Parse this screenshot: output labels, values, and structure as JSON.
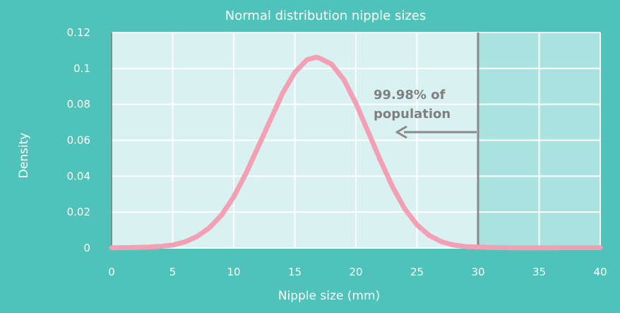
{
  "colors": {
    "background": "#4fc2b9",
    "plot_fill": "#d9f1f0",
    "shaded_fill": "#a9e2de",
    "grid": "#ffffff",
    "curve": "#f4a0b4",
    "marker_line": "#8a8a8a",
    "annotation_text": "#7f7f7f",
    "label_text": "#ffffff"
  },
  "chart_data": {
    "type": "line",
    "title": "Normal distribution nipple sizes",
    "xlabel": "Nipple size (mm)",
    "ylabel": "Density",
    "xlim": [
      0,
      40
    ],
    "ylim": [
      0,
      0.12
    ],
    "x_ticks": [
      0,
      5,
      10,
      15,
      20,
      25,
      30,
      35,
      40
    ],
    "y_ticks": [
      0,
      0.02,
      0.04,
      0.06,
      0.08,
      0.1,
      0.12
    ],
    "grid": true,
    "series": [
      {
        "x": [
          0,
          1,
          2,
          3,
          4,
          5,
          6,
          7,
          8,
          9,
          10,
          11,
          12,
          13,
          14,
          15,
          16,
          16.7,
          17,
          18,
          19,
          20,
          21,
          22,
          23,
          24,
          25,
          26,
          27,
          28,
          29,
          30,
          31,
          32,
          33,
          34,
          35,
          36,
          37,
          38,
          39,
          40
        ],
        "y": [
          0.0001,
          0.0002,
          0.0003,
          0.0005,
          0.0009,
          0.0016,
          0.0034,
          0.0064,
          0.0112,
          0.0183,
          0.0285,
          0.0415,
          0.0563,
          0.0713,
          0.0862,
          0.0978,
          0.1048,
          0.1062,
          0.1058,
          0.1024,
          0.0939,
          0.0806,
          0.0648,
          0.0489,
          0.0341,
          0.0218,
          0.0129,
          0.007,
          0.0035,
          0.0016,
          0.0008,
          0.0005,
          0.0003,
          0.0002,
          0.0001,
          0.0001,
          0.0001,
          0.0001,
          0.0002,
          0.0002,
          0.0002,
          0.0002
        ]
      }
    ],
    "threshold_x": 30,
    "shaded_region": [
      30,
      40
    ],
    "annotation": {
      "line1": "99.98% of",
      "line2": "population",
      "arrow_direction": "left"
    }
  }
}
